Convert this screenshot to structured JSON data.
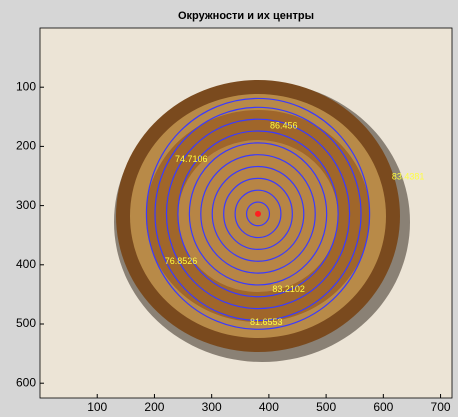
{
  "chart_data": {
    "type": "image",
    "title": "Окружности и их центры",
    "xlim": [
      0,
      720
    ],
    "ylim": [
      0,
      625
    ],
    "y_reversed": true,
    "xticks": [
      100,
      200,
      300,
      400,
      500,
      600,
      700
    ],
    "yticks": [
      100,
      200,
      300,
      400,
      500,
      600
    ],
    "center": {
      "x": 381,
      "y": 314,
      "color": "#ff2020"
    },
    "circles": {
      "color": "#3a3aff",
      "radii": [
        20,
        40,
        60,
        80,
        100,
        120,
        140,
        160,
        180,
        195
      ]
    },
    "label_color": "#ffff40",
    "labels": [
      {
        "text": "86.456",
        "x": 402,
        "y": 166
      },
      {
        "text": "74.7106",
        "x": 236,
        "y": 222
      },
      {
        "text": "83.4381",
        "x": 615,
        "y": 252
      },
      {
        "text": "76.8526",
        "x": 218,
        "y": 395
      },
      {
        "text": "83.2102",
        "x": 406,
        "y": 442
      },
      {
        "text": "81.6553",
        "x": 367,
        "y": 498
      }
    ]
  }
}
